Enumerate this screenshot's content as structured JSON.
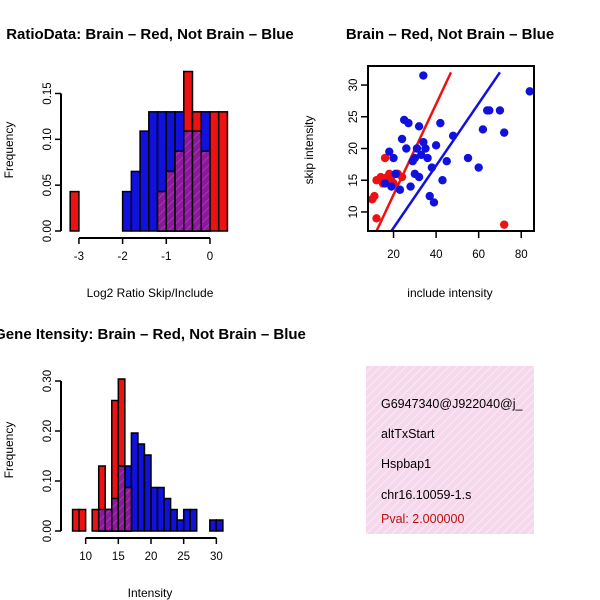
{
  "colors": {
    "red": "#ee1111",
    "blue": "#1111dd",
    "purple": "#8a1a9a",
    "info_bg": "#f6d8ec",
    "pval": "#bb1111"
  },
  "chart_data": [
    {
      "type": "histogram",
      "title": "RatioData: Brain – Red, Not Brain – Blue",
      "xlabel": "Log2 Ratio Skip/Include",
      "ylabel": "Frequency",
      "xlim": [
        -3.25,
        0.55
      ],
      "ylim": [
        0,
        0.18
      ],
      "xticks": [
        "-3",
        "-2",
        "-1",
        "0"
      ],
      "xtick_values": [
        -3,
        -2,
        -1,
        0
      ],
      "yticks": [
        "0.00",
        "0.05",
        "0.10",
        "0.15"
      ],
      "ytick_values": [
        0,
        0.05,
        0.1,
        0.15
      ],
      "bin_width": 0.2,
      "series": [
        {
          "name": "Not Brain",
          "color": "blue",
          "bins": [
            [
              -2.0,
              0.043
            ],
            [
              -1.8,
              0.065
            ],
            [
              -1.6,
              0.109
            ],
            [
              -1.4,
              0.13
            ],
            [
              -1.2,
              0.13
            ],
            [
              -1.0,
              0.13
            ],
            [
              -0.8,
              0.13
            ],
            [
              -0.6,
              0.109
            ],
            [
              -0.4,
              0.109
            ],
            [
              -0.2,
              0.13
            ]
          ]
        },
        {
          "name": "Brain",
          "color": "red",
          "bins": [
            [
              -3.2,
              0.043
            ],
            [
              -1.2,
              0.043
            ],
            [
              -1.0,
              0.065
            ],
            [
              -0.8,
              0.087
            ],
            [
              -0.6,
              0.174
            ],
            [
              -0.4,
              0.13
            ],
            [
              -0.2,
              0.087
            ],
            [
              0.0,
              0.13
            ],
            [
              0.2,
              0.13
            ]
          ]
        }
      ]
    },
    {
      "type": "scatter",
      "title": "Brain – Red, Not Brain – Blue",
      "xlabel": "include intensity",
      "ylabel": "skip intensity",
      "xlim": [
        8,
        86
      ],
      "ylim": [
        7,
        33
      ],
      "xticks": [
        "20",
        "40",
        "60",
        "80"
      ],
      "xtick_values": [
        20,
        40,
        60,
        80
      ],
      "yticks": [
        "10",
        "15",
        "20",
        "25",
        "30"
      ],
      "ytick_values": [
        10,
        15,
        20,
        25,
        30
      ],
      "series": [
        {
          "name": "Brain",
          "color": "red",
          "points": [
            [
              10,
              12
            ],
            [
              11,
              12.5
            ],
            [
              12,
              15
            ],
            [
              12,
              9
            ],
            [
              14,
              15.5
            ],
            [
              15,
              14.5
            ],
            [
              16,
              18.5
            ],
            [
              17,
              15.5
            ],
            [
              18,
              16
            ],
            [
              19,
              15
            ],
            [
              20,
              14.5
            ],
            [
              22,
              16
            ],
            [
              24,
              15.5
            ],
            [
              72,
              8
            ]
          ],
          "fit": [
            [
              12,
              7
            ],
            [
              47,
              32
            ]
          ]
        },
        {
          "name": "Not Brain",
          "color": "blue",
          "points": [
            [
              16,
              14.5
            ],
            [
              18,
              19.5
            ],
            [
              19,
              14
            ],
            [
              20,
              18.5
            ],
            [
              21,
              16
            ],
            [
              23,
              13.5
            ],
            [
              24,
              21.5
            ],
            [
              25,
              24.5
            ],
            [
              26,
              20
            ],
            [
              27,
              24
            ],
            [
              28,
              14
            ],
            [
              29,
              18
            ],
            [
              30,
              18.5
            ],
            [
              30,
              16
            ],
            [
              31,
              20
            ],
            [
              32,
              15.5
            ],
            [
              32,
              23.5
            ],
            [
              33,
              19
            ],
            [
              34,
              31.5
            ],
            [
              34,
              21
            ],
            [
              35,
              20
            ],
            [
              36,
              18.5
            ],
            [
              37,
              12.5
            ],
            [
              38,
              17
            ],
            [
              39,
              11.5
            ],
            [
              40,
              20.5
            ],
            [
              42,
              24
            ],
            [
              43,
              15
            ],
            [
              45,
              18
            ],
            [
              48,
              22
            ],
            [
              55,
              18.5
            ],
            [
              60,
              17
            ],
            [
              62,
              23
            ],
            [
              64,
              26
            ],
            [
              65,
              26
            ],
            [
              70,
              26
            ],
            [
              72,
              22.5
            ],
            [
              84,
              29
            ]
          ],
          "fit": [
            [
              19,
              7
            ],
            [
              70,
              32
            ]
          ]
        }
      ]
    },
    {
      "type": "histogram",
      "title": "Gene Itensity: Brain – Red, Not Brain – Blue",
      "xlabel": "Intensity",
      "ylabel": "Frequency",
      "xlim": [
        7.3,
        32.7
      ],
      "ylim": [
        0,
        0.33
      ],
      "xticks": [
        "10",
        "15",
        "20",
        "25",
        "30"
      ],
      "xtick_values": [
        10,
        15,
        20,
        25,
        30
      ],
      "yticks": [
        "0.00",
        "0.10",
        "0.20",
        "0.30"
      ],
      "ytick_values": [
        0,
        0.1,
        0.2,
        0.3
      ],
      "bin_width": 1,
      "series": [
        {
          "name": "Not Brain",
          "color": "blue",
          "bins": [
            [
              12,
              0.043
            ],
            [
              13,
              0.043
            ],
            [
              14,
              0.065
            ],
            [
              15,
              0.13
            ],
            [
              16,
              0.13
            ],
            [
              17,
              0.196
            ],
            [
              18,
              0.174
            ],
            [
              19,
              0.152
            ],
            [
              20,
              0.087
            ],
            [
              21,
              0.087
            ],
            [
              22,
              0.065
            ],
            [
              23,
              0.043
            ],
            [
              24,
              0.022
            ],
            [
              25,
              0.043
            ],
            [
              26,
              0.043
            ],
            [
              29,
              0.022
            ],
            [
              30,
              0.022
            ]
          ]
        },
        {
          "name": "Brain",
          "color": "red",
          "bins": [
            [
              8,
              0.043
            ],
            [
              9,
              0.043
            ],
            [
              11,
              0.043
            ],
            [
              12,
              0.13
            ],
            [
              13,
              0.043
            ],
            [
              14,
              0.261
            ],
            [
              15,
              0.304
            ],
            [
              16,
              0.087
            ]
          ]
        }
      ]
    }
  ],
  "info_panel": {
    "id": "G6947340@J922040@j_",
    "event_type": "altTxStart",
    "gene": "Hspbap1",
    "location": "chr16.10059-1.s",
    "pval": "Pval: 2.000000"
  }
}
